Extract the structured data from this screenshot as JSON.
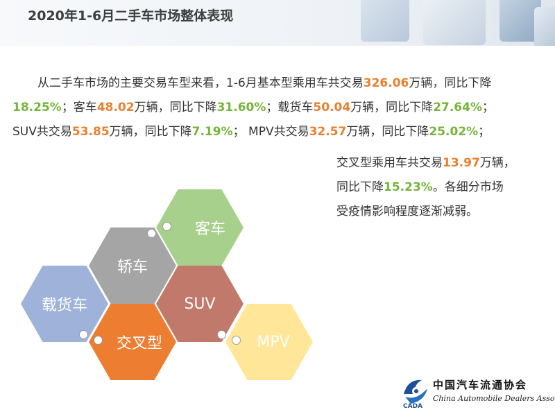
{
  "header": {
    "title": "2020年1-6月二手车市场整体表现"
  },
  "paragraph": {
    "line1": {
      "t1": "从二手车市场的主要交易车型来看，1-6月基本型乘用车共交易",
      "v1": "326.06",
      "t2": "万辆，同比下降"
    },
    "line2": {
      "v1": "18.25%",
      "t1": "；客车",
      "v2": "48.02",
      "t2": "万辆，同比下降",
      "v3": "31.60%",
      "t3": "；载货车",
      "v4": "50.04",
      "t4": "万辆，同比下降",
      "v5": "27.64%",
      "t5": "；"
    },
    "line3": {
      "t1": "SUV共交易",
      "v1": "53.85",
      "t2": "万辆，同比下降",
      "v2": "7.19%",
      "t3": "； MPV共交易",
      "v3": "32.57",
      "t4": "万辆，同比下降",
      "v4": "25.02%",
      "t5": "；"
    },
    "line4": {
      "t1": "交叉型乘用车共交易",
      "v1": "13.97",
      "t2": "万辆，"
    },
    "line5": {
      "t1": "同比下降",
      "v1": "15.23%",
      "t2": "。各细分市场"
    },
    "line6": {
      "t1": "受疫情影响程度逐渐减弱。"
    }
  },
  "hexagons": [
    {
      "label": "客车",
      "color": "#a8d08d"
    },
    {
      "label": "轿车",
      "color": "#a5a5a5"
    },
    {
      "label": "载货车",
      "color": "#9fb3da"
    },
    {
      "label": "SUV",
      "color": "#c0796a"
    },
    {
      "label": "交叉型",
      "color": "#ed7d31"
    },
    {
      "label": "MPV",
      "color": "#ffe699"
    }
  ],
  "logo": {
    "name_cn": "中国汽车流通协会",
    "name_en": "China Automobile Dealers Association",
    "abbr": "CADA"
  }
}
